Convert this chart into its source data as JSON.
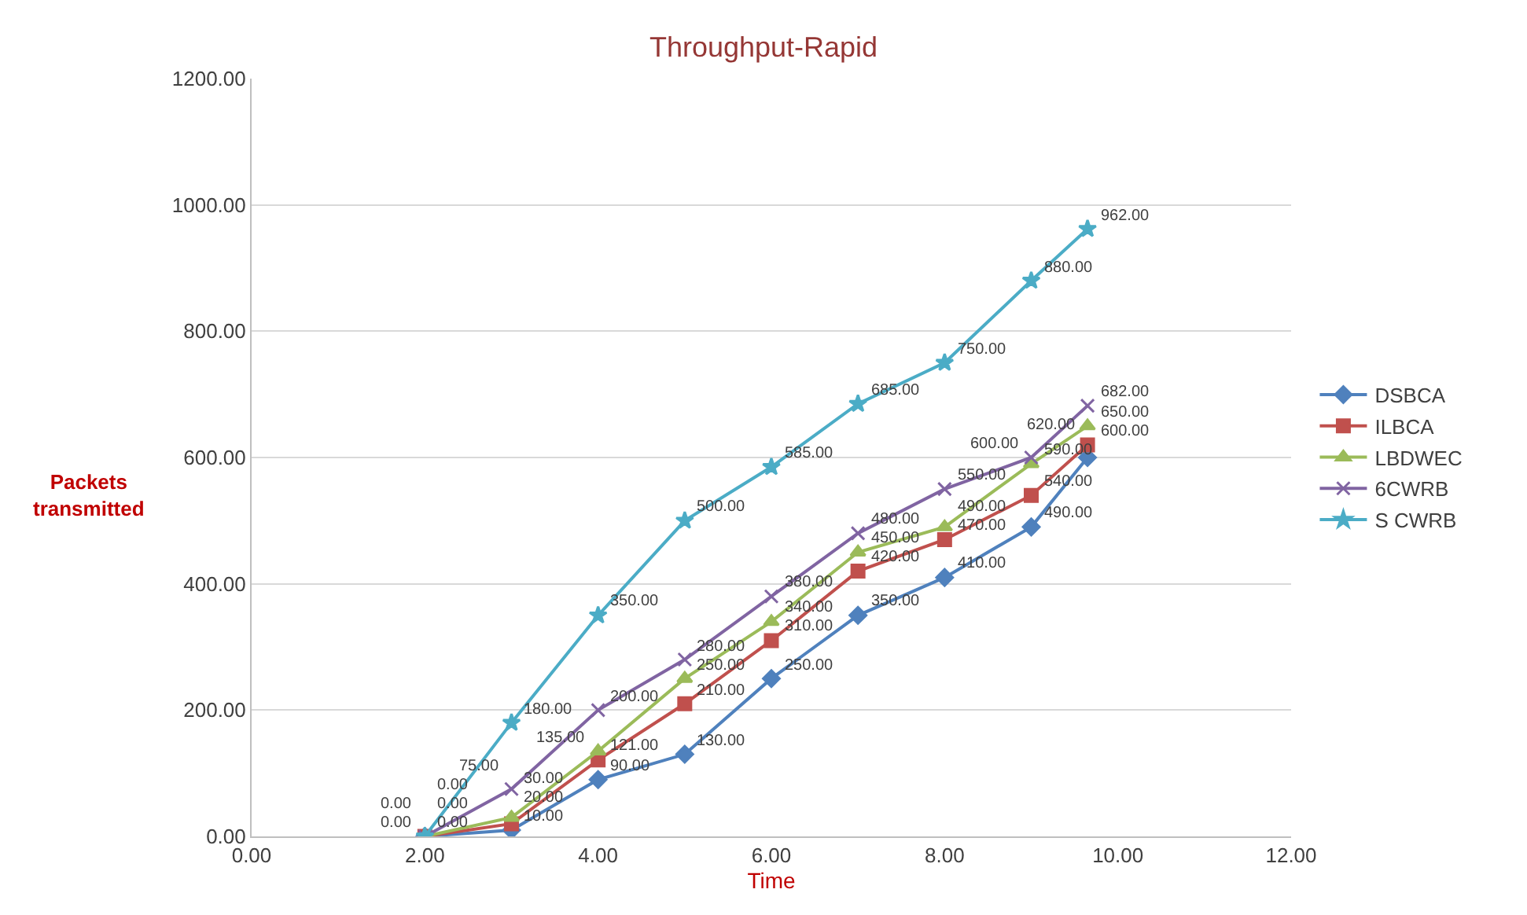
{
  "chart_data": {
    "type": "line",
    "title": "Throughput-Rapid",
    "xlabel": "Time",
    "ylabel": "Packets\ntransmitted",
    "x": [
      2,
      3,
      4,
      5,
      6,
      7,
      8,
      9,
      9.65
    ],
    "series": [
      {
        "name": "DSBCA",
        "color": "#4f81bd",
        "marker": "diamond",
        "values": [
          0,
          10,
          90,
          130,
          250,
          350,
          410,
          490,
          600
        ],
        "value_labels": [
          "0.00",
          "10.00",
          "90.00",
          "130.00",
          "250.00",
          "350.00",
          "410.00",
          "490.00",
          "600.00"
        ]
      },
      {
        "name": "ILBCA",
        "color": "#c0504d",
        "marker": "square",
        "values": [
          0,
          20,
          121,
          210,
          310,
          420,
          470,
          540,
          620
        ],
        "value_labels": [
          "0.00",
          "20.00",
          "121.00",
          "210.00",
          "310.00",
          "420.00",
          "470.00",
          "540.00",
          "620.00"
        ]
      },
      {
        "name": "LBDWEC",
        "color": "#9bbb59",
        "marker": "triangle",
        "values": [
          0,
          30,
          135,
          250,
          340,
          450,
          490,
          590,
          650
        ],
        "value_labels": [
          "0.00",
          "30.00",
          "135.00",
          "250.00",
          "340.00",
          "450.00",
          "490.00",
          "590.00",
          "650.00"
        ]
      },
      {
        "name": "6CWRB",
        "color": "#8064a2",
        "marker": "cross",
        "values": [
          0,
          75,
          200,
          280,
          380,
          480,
          550,
          600,
          682
        ],
        "value_labels": [
          "0.00",
          "75.00",
          "200.00",
          "280.00",
          "380.00",
          "480.00",
          "550.00",
          "600.00",
          "682.00"
        ]
      },
      {
        "name": "S CWRB",
        "color": "#4bacc6",
        "marker": "star",
        "values": [
          0,
          180,
          350,
          500,
          585,
          685,
          750,
          880,
          962
        ],
        "value_labels": [
          "0.00",
          "180.00",
          "350.00",
          "500.00",
          "585.00",
          "685.00",
          "750.00",
          "880.00",
          "962.00"
        ]
      }
    ],
    "xlim": [
      0,
      12
    ],
    "xticks": [
      {
        "value": 0,
        "label": "0.00"
      },
      {
        "value": 2,
        "label": "2.00"
      },
      {
        "value": 4,
        "label": "4.00"
      },
      {
        "value": 6,
        "label": "6.00"
      },
      {
        "value": 8,
        "label": "8.00"
      },
      {
        "value": 10,
        "label": "10.00"
      },
      {
        "value": 12,
        "label": "12.00"
      }
    ],
    "ylim": [
      0,
      1200
    ],
    "yticks": [
      {
        "value": 0,
        "label": "0.00"
      },
      {
        "value": 200,
        "label": "200.00"
      },
      {
        "value": 400,
        "label": "400.00"
      },
      {
        "value": 600,
        "label": "600.00"
      },
      {
        "value": 800,
        "label": "800.00"
      },
      {
        "value": 1000,
        "label": "1000.00"
      },
      {
        "value": 1200,
        "label": "1200.00"
      }
    ],
    "grid": "y",
    "legend": "right",
    "line_style": "solid"
  }
}
